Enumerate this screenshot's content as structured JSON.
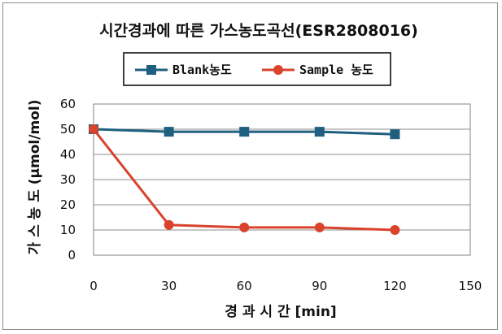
{
  "chart_data": {
    "type": "line",
    "title": "시간경과에 따른 가스농도곡선(ESR2808016)",
    "xlabel": "경 과 시 간 [min]",
    "ylabel": "가 스 농 도 (μmol/mol)",
    "xlim": [
      0,
      150
    ],
    "ylim": [
      0,
      60
    ],
    "xticks": [
      "0",
      "30",
      "60",
      "90",
      "120",
      "150"
    ],
    "yticks": [
      "0",
      "10",
      "20",
      "30",
      "40",
      "50",
      "60"
    ],
    "x": [
      0,
      30,
      60,
      90,
      120
    ],
    "grid": true,
    "legend_position": "top",
    "series": [
      {
        "name": "Blank농도",
        "values": [
          50,
          49,
          49,
          49,
          48
        ],
        "color": "#1f5f7f",
        "marker": "square"
      },
      {
        "name": "Sample 농도",
        "values": [
          50,
          12,
          11,
          11,
          10
        ],
        "color": "#d9432c",
        "marker": "circle"
      }
    ]
  }
}
